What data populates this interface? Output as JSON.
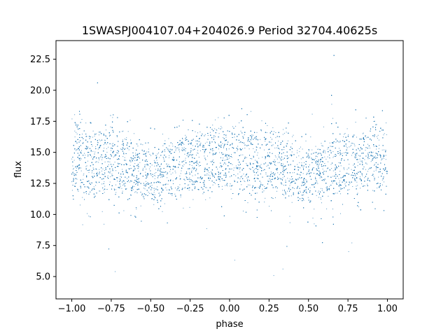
{
  "chart_data": {
    "type": "scatter",
    "title": "1SWASPJ004107.04+204026.9 Period 32704.40625s",
    "xlabel": "phase",
    "ylabel": "flux",
    "xlim": [
      -1.1,
      1.1
    ],
    "ylim": [
      3.2,
      24.0
    ],
    "xticks": [
      -1.0,
      -0.75,
      -0.5,
      -0.25,
      0.0,
      0.25,
      0.5,
      0.75,
      1.0
    ],
    "xtick_labels": [
      "−1.00",
      "−0.75",
      "−0.50",
      "−0.25",
      "0.00",
      "0.25",
      "0.50",
      "0.75",
      "1.00"
    ],
    "yticks": [
      5.0,
      7.5,
      10.0,
      12.5,
      15.0,
      17.5,
      20.0,
      22.5
    ],
    "ytick_labels": [
      "5.0",
      "7.5",
      "10.0",
      "12.5",
      "15.0",
      "17.5",
      "20.0",
      "22.5"
    ],
    "grid": false,
    "marker_color": "#1f77b4",
    "series": [
      {
        "x_range": [
          -1.0,
          1.0
        ],
        "band_upper": [
          [
            -1.0,
            17.0
          ],
          [
            -0.75,
            16.4
          ],
          [
            -0.5,
            15.1
          ],
          [
            -0.25,
            16.2
          ],
          [
            0.0,
            17.0
          ],
          [
            0.25,
            16.4
          ],
          [
            0.5,
            15.1
          ],
          [
            0.75,
            16.2
          ],
          [
            1.0,
            17.0
          ]
        ],
        "band_lower": [
          [
            -1.0,
            12.0
          ],
          [
            -0.75,
            11.8
          ],
          [
            -0.5,
            11.3
          ],
          [
            -0.25,
            11.9
          ],
          [
            0.0,
            12.3
          ],
          [
            0.25,
            11.8
          ],
          [
            0.5,
            11.3
          ],
          [
            0.75,
            11.9
          ],
          [
            1.0,
            12.0
          ]
        ],
        "outlier_range": [
          4.2,
          23.0
        ]
      }
    ]
  }
}
